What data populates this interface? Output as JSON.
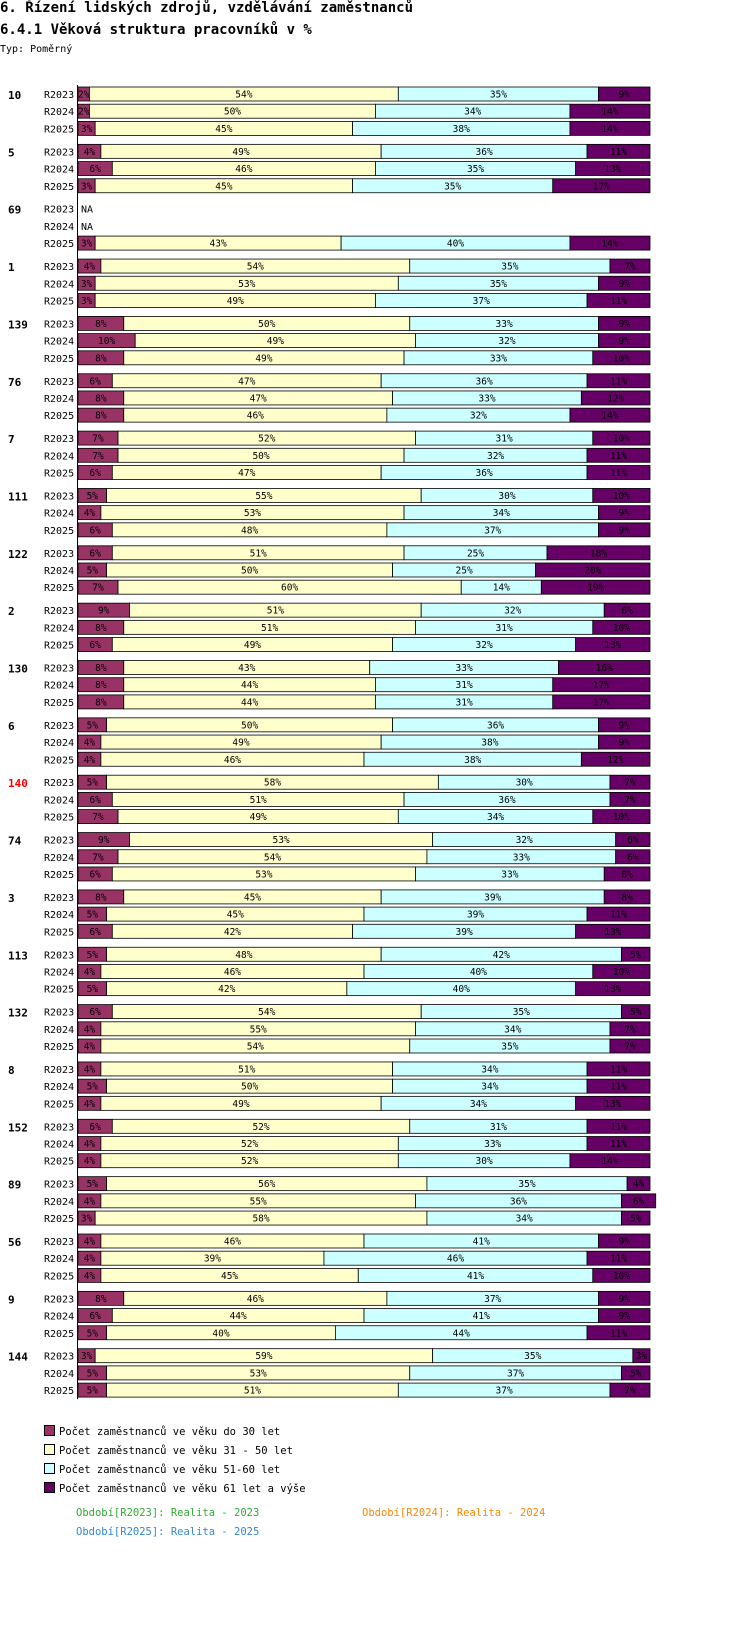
{
  "header": {
    "title": "6. Řízení lidských zdrojů, vzdělávání zaměstnanců",
    "subtitle": "6.4.1 Věková struktura pracovníků v %",
    "type_label": "Typ: Poměrný"
  },
  "colors": {
    "under30": "#993366",
    "age31_50": "#ffffcc",
    "age51_60": "#ccffff",
    "over61": "#660066",
    "highlight": "#ff0000",
    "period_R2023": "#33aa33",
    "period_R2024": "#ff8800",
    "period_R2025": "#3388cc"
  },
  "chart_data": {
    "type": "bar",
    "stacked": true,
    "orientation": "horizontal",
    "title": "6.4.1 Věková struktura pracovníků v %",
    "xlim": [
      0,
      100
    ],
    "series_names": [
      "Počet zaměstnanců ve věku do 30 let",
      "Počet zaměstnanců ve věku 31 - 50 let",
      "Počet zaměstnanců ve věku 51-60 let",
      "Počet zaměstnanců ve věku 61 let a výše"
    ],
    "missing_label": "NA",
    "groups": [
      {
        "id": "10",
        "highlight": false,
        "rows": [
          {
            "period": "R2023",
            "values": [
              2,
              54,
              35,
              9
            ]
          },
          {
            "period": "R2024",
            "values": [
              2,
              50,
              34,
              14
            ]
          },
          {
            "period": "R2025",
            "values": [
              3,
              45,
              38,
              14
            ]
          }
        ]
      },
      {
        "id": "5",
        "highlight": false,
        "rows": [
          {
            "period": "R2023",
            "values": [
              4,
              49,
              36,
              11
            ]
          },
          {
            "period": "R2024",
            "values": [
              6,
              46,
              35,
              13
            ]
          },
          {
            "period": "R2025",
            "values": [
              3,
              45,
              35,
              17
            ]
          }
        ]
      },
      {
        "id": "69",
        "highlight": false,
        "rows": [
          {
            "period": "R2023",
            "values": null
          },
          {
            "period": "R2024",
            "values": null
          },
          {
            "period": "R2025",
            "values": [
              3,
              43,
              40,
              14
            ]
          }
        ]
      },
      {
        "id": "1",
        "highlight": false,
        "rows": [
          {
            "period": "R2023",
            "values": [
              4,
              54,
              35,
              7
            ]
          },
          {
            "period": "R2024",
            "values": [
              3,
              53,
              35,
              9
            ]
          },
          {
            "period": "R2025",
            "values": [
              3,
              49,
              37,
              11
            ]
          }
        ]
      },
      {
        "id": "139",
        "highlight": false,
        "rows": [
          {
            "period": "R2023",
            "values": [
              8,
              50,
              33,
              9
            ]
          },
          {
            "period": "R2024",
            "values": [
              10,
              49,
              32,
              9
            ]
          },
          {
            "period": "R2025",
            "values": [
              8,
              49,
              33,
              10
            ]
          }
        ]
      },
      {
        "id": "76",
        "highlight": false,
        "rows": [
          {
            "period": "R2023",
            "values": [
              6,
              47,
              36,
              11
            ]
          },
          {
            "period": "R2024",
            "values": [
              8,
              47,
              33,
              12
            ]
          },
          {
            "period": "R2025",
            "values": [
              8,
              46,
              32,
              14
            ]
          }
        ]
      },
      {
        "id": "7",
        "highlight": false,
        "rows": [
          {
            "period": "R2023",
            "values": [
              7,
              52,
              31,
              10
            ]
          },
          {
            "period": "R2024",
            "values": [
              7,
              50,
              32,
              11
            ]
          },
          {
            "period": "R2025",
            "values": [
              6,
              47,
              36,
              11
            ]
          }
        ]
      },
      {
        "id": "111",
        "highlight": false,
        "rows": [
          {
            "period": "R2023",
            "values": [
              5,
              55,
              30,
              10
            ]
          },
          {
            "period": "R2024",
            "values": [
              4,
              53,
              34,
              9
            ]
          },
          {
            "period": "R2025",
            "values": [
              6,
              48,
              37,
              9
            ]
          }
        ]
      },
      {
        "id": "122",
        "highlight": false,
        "rows": [
          {
            "period": "R2023",
            "values": [
              6,
              51,
              25,
              18
            ]
          },
          {
            "period": "R2024",
            "values": [
              5,
              50,
              25,
              20
            ]
          },
          {
            "period": "R2025",
            "values": [
              7,
              60,
              14,
              19
            ]
          }
        ]
      },
      {
        "id": "2",
        "highlight": false,
        "rows": [
          {
            "period": "R2023",
            "values": [
              9,
              51,
              32,
              8
            ]
          },
          {
            "period": "R2024",
            "values": [
              8,
              51,
              31,
              10
            ]
          },
          {
            "period": "R2025",
            "values": [
              6,
              49,
              32,
              13
            ]
          }
        ]
      },
      {
        "id": "130",
        "highlight": false,
        "rows": [
          {
            "period": "R2023",
            "values": [
              8,
              43,
              33,
              16
            ]
          },
          {
            "period": "R2024",
            "values": [
              8,
              44,
              31,
              17
            ]
          },
          {
            "period": "R2025",
            "values": [
              8,
              44,
              31,
              17
            ]
          }
        ]
      },
      {
        "id": "6",
        "highlight": false,
        "rows": [
          {
            "period": "R2023",
            "values": [
              5,
              50,
              36,
              9
            ]
          },
          {
            "period": "R2024",
            "values": [
              4,
              49,
              38,
              9
            ]
          },
          {
            "period": "R2025",
            "values": [
              4,
              46,
              38,
              12
            ]
          }
        ]
      },
      {
        "id": "140",
        "highlight": true,
        "rows": [
          {
            "period": "R2023",
            "values": [
              5,
              58,
              30,
              7
            ]
          },
          {
            "period": "R2024",
            "values": [
              6,
              51,
              36,
              7
            ]
          },
          {
            "period": "R2025",
            "values": [
              7,
              49,
              34,
              10
            ]
          }
        ]
      },
      {
        "id": "74",
        "highlight": false,
        "rows": [
          {
            "period": "R2023",
            "values": [
              9,
              53,
              32,
              6
            ]
          },
          {
            "period": "R2024",
            "values": [
              7,
              54,
              33,
              6
            ]
          },
          {
            "period": "R2025",
            "values": [
              6,
              53,
              33,
              8
            ]
          }
        ]
      },
      {
        "id": "3",
        "highlight": false,
        "rows": [
          {
            "period": "R2023",
            "values": [
              8,
              45,
              39,
              8
            ]
          },
          {
            "period": "R2024",
            "values": [
              5,
              45,
              39,
              11
            ]
          },
          {
            "period": "R2025",
            "values": [
              6,
              42,
              39,
              13
            ]
          }
        ]
      },
      {
        "id": "113",
        "highlight": false,
        "rows": [
          {
            "period": "R2023",
            "values": [
              5,
              48,
              42,
              5
            ]
          },
          {
            "period": "R2024",
            "values": [
              4,
              46,
              40,
              10
            ]
          },
          {
            "period": "R2025",
            "values": [
              5,
              42,
              40,
              13
            ]
          }
        ]
      },
      {
        "id": "132",
        "highlight": false,
        "rows": [
          {
            "period": "R2023",
            "values": [
              6,
              54,
              35,
              5
            ]
          },
          {
            "period": "R2024",
            "values": [
              4,
              55,
              34,
              7
            ]
          },
          {
            "period": "R2025",
            "values": [
              4,
              54,
              35,
              7
            ]
          }
        ]
      },
      {
        "id": "8",
        "highlight": false,
        "rows": [
          {
            "period": "R2023",
            "values": [
              4,
              51,
              34,
              11
            ]
          },
          {
            "period": "R2024",
            "values": [
              5,
              50,
              34,
              11
            ]
          },
          {
            "period": "R2025",
            "values": [
              4,
              49,
              34,
              13
            ]
          }
        ]
      },
      {
        "id": "152",
        "highlight": false,
        "rows": [
          {
            "period": "R2023",
            "values": [
              6,
              52,
              31,
              11
            ]
          },
          {
            "period": "R2024",
            "values": [
              4,
              52,
              33,
              11
            ]
          },
          {
            "period": "R2025",
            "values": [
              4,
              52,
              30,
              14
            ]
          }
        ]
      },
      {
        "id": "89",
        "highlight": false,
        "rows": [
          {
            "period": "R2023",
            "values": [
              5,
              56,
              35,
              4
            ]
          },
          {
            "period": "R2024",
            "values": [
              4,
              55,
              36,
              6
            ]
          },
          {
            "period": "R2025",
            "values": [
              3,
              58,
              34,
              5
            ]
          }
        ]
      },
      {
        "id": "56",
        "highlight": false,
        "rows": [
          {
            "period": "R2023",
            "values": [
              4,
              46,
              41,
              9
            ]
          },
          {
            "period": "R2024",
            "values": [
              4,
              39,
              46,
              11
            ]
          },
          {
            "period": "R2025",
            "values": [
              4,
              45,
              41,
              10
            ]
          }
        ]
      },
      {
        "id": "9",
        "highlight": false,
        "rows": [
          {
            "period": "R2023",
            "values": [
              8,
              46,
              37,
              9
            ]
          },
          {
            "period": "R2024",
            "values": [
              6,
              44,
              41,
              9
            ]
          },
          {
            "period": "R2025",
            "values": [
              5,
              40,
              44,
              11
            ]
          }
        ]
      },
      {
        "id": "144",
        "highlight": false,
        "rows": [
          {
            "period": "R2023",
            "values": [
              3,
              59,
              35,
              3
            ]
          },
          {
            "period": "R2024",
            "values": [
              5,
              53,
              37,
              5
            ]
          },
          {
            "period": "R2025",
            "values": [
              5,
              51,
              37,
              7
            ]
          }
        ]
      }
    ]
  },
  "legend": {
    "items": [
      "Počet zaměstnanců ve věku do 30 let",
      "Počet zaměstnanců ve věku 31 - 50 let",
      "Počet zaměstnanců ve věku 51-60 let",
      "Počet zaměstnanců ve věku 61 let a výše"
    ]
  },
  "periods": {
    "R2023": "Období[R2023]: Realita - 2023",
    "R2024": "Období[R2024]: Realita - 2024",
    "R2025": "Období[R2025]: Realita - 2025"
  }
}
